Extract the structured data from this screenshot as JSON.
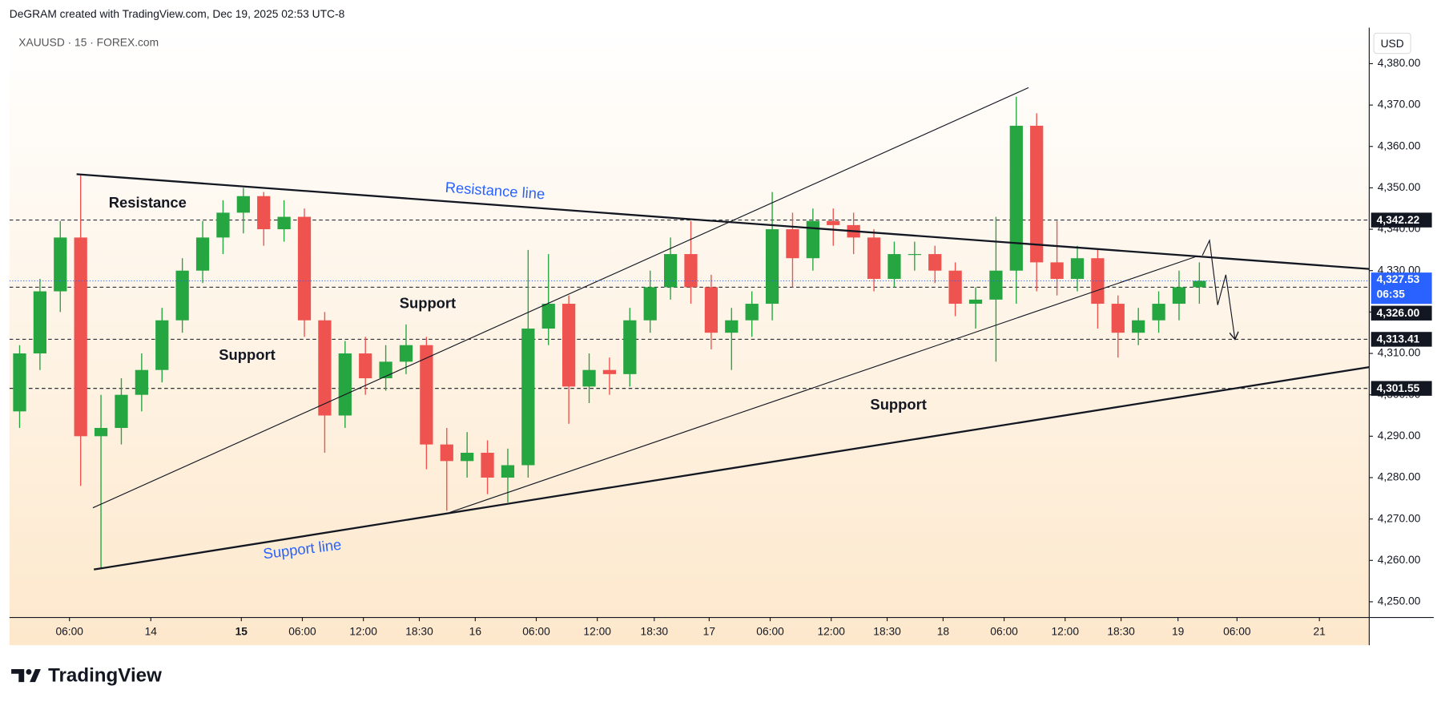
{
  "header": "DeGRAM created with TradingView.com, Dec 19, 2025 02:53 UTC-8",
  "brand": "TradingView",
  "chart_data": {
    "type": "candlestick",
    "symbol": "XAUUSD · 15 · FOREX.com",
    "currency": "USD",
    "up_color": "#26a641",
    "down_color": "#ef5350",
    "xlim": [
      0,
      133.7
    ],
    "xticks": [
      {
        "value": 5.9,
        "label": "06:00"
      },
      {
        "value": 13.9,
        "label": "14"
      },
      {
        "value": 22.8,
        "label": "15",
        "bold": true
      },
      {
        "value": 28.8,
        "label": "06:00"
      },
      {
        "value": 34.8,
        "label": "12:00"
      },
      {
        "value": 40.3,
        "label": "18:30"
      },
      {
        "value": 45.8,
        "label": "16"
      },
      {
        "value": 51.8,
        "label": "06:00"
      },
      {
        "value": 57.8,
        "label": "12:00"
      },
      {
        "value": 63.4,
        "label": "18:30"
      },
      {
        "value": 68.8,
        "label": "17"
      },
      {
        "value": 74.8,
        "label": "06:00"
      },
      {
        "value": 80.8,
        "label": "12:00"
      },
      {
        "value": 86.3,
        "label": "18:30"
      },
      {
        "value": 91.8,
        "label": "18"
      },
      {
        "value": 97.8,
        "label": "06:00"
      },
      {
        "value": 103.8,
        "label": "12:00"
      },
      {
        "value": 109.3,
        "label": "18:30"
      },
      {
        "value": 114.9,
        "label": "19"
      },
      {
        "value": 120.7,
        "label": "06:00"
      },
      {
        "value": 128.8,
        "label": "21"
      }
    ],
    "ylim": [
      4246.2,
      4388.7
    ],
    "yticks": [
      {
        "value": 4250,
        "label": "4,250.00"
      },
      {
        "value": 4260,
        "label": "4,260.00"
      },
      {
        "value": 4270,
        "label": "4,270.00"
      },
      {
        "value": 4280,
        "label": "4,280.00"
      },
      {
        "value": 4290,
        "label": "4,290.00"
      },
      {
        "value": 4300,
        "label": "4,300.00"
      },
      {
        "value": 4310,
        "label": "4,310.00"
      },
      {
        "value": 4320,
        "label": "4,320.00"
      },
      {
        "value": 4330,
        "label": "4,330.00"
      },
      {
        "value": 4340,
        "label": "4,340.00"
      },
      {
        "value": 4350,
        "label": "4,350.00"
      },
      {
        "value": 4360,
        "label": "4,360.00"
      },
      {
        "value": 4370,
        "label": "4,370.00"
      },
      {
        "value": 4380,
        "label": "4,380.00"
      }
    ],
    "x": [
      0,
      2,
      4,
      6,
      8,
      10,
      12,
      14,
      16,
      18,
      20,
      22,
      24,
      26,
      28,
      30,
      32,
      34,
      36,
      38,
      40,
      42,
      44,
      46,
      48,
      50,
      52,
      54,
      56,
      58,
      60,
      62,
      64,
      66,
      68,
      70,
      72,
      74,
      76,
      78,
      80,
      82,
      84,
      86,
      88,
      90,
      92,
      94,
      96,
      98,
      100,
      102,
      104,
      106,
      108,
      110,
      112,
      114,
      116
    ],
    "ohlc": [
      [
        4296,
        4312,
        4292,
        4310
      ],
      [
        4310,
        4328,
        4306,
        4325
      ],
      [
        4325,
        4342,
        4320,
        4338
      ],
      [
        4338,
        4353,
        4278,
        4290
      ],
      [
        4290,
        4300,
        4258,
        4292
      ],
      [
        4292,
        4304,
        4288,
        4300
      ],
      [
        4300,
        4310,
        4296,
        4306
      ],
      [
        4306,
        4321,
        4303,
        4318
      ],
      [
        4318,
        4333,
        4315,
        4330
      ],
      [
        4330,
        4342,
        4327,
        4338
      ],
      [
        4338,
        4347,
        4334,
        4344
      ],
      [
        4344,
        4350,
        4339,
        4348
      ],
      [
        4348,
        4349,
        4336,
        4340
      ],
      [
        4340,
        4347,
        4337,
        4343
      ],
      [
        4343,
        4345,
        4314,
        4318
      ],
      [
        4318,
        4320,
        4286,
        4295
      ],
      [
        4295,
        4313,
        4292,
        4310
      ],
      [
        4310,
        4314,
        4300,
        4304
      ],
      [
        4304,
        4312,
        4301,
        4308
      ],
      [
        4308,
        4317,
        4305,
        4312
      ],
      [
        4312,
        4314,
        4282,
        4288
      ],
      [
        4288,
        4292,
        4272,
        4284
      ],
      [
        4284,
        4291,
        4280,
        4286
      ],
      [
        4286,
        4289,
        4276,
        4280
      ],
      [
        4280,
        4287,
        4274,
        4283
      ],
      [
        4283,
        4335,
        4280,
        4316
      ],
      [
        4316,
        4334,
        4312,
        4322
      ],
      [
        4322,
        4324,
        4293,
        4302
      ],
      [
        4302,
        4310,
        4298,
        4306
      ],
      [
        4306,
        4309,
        4300,
        4305
      ],
      [
        4305,
        4321,
        4302,
        4318
      ],
      [
        4318,
        4330,
        4315,
        4326
      ],
      [
        4326,
        4338,
        4323,
        4334
      ],
      [
        4334,
        4342,
        4322,
        4326
      ],
      [
        4326,
        4329,
        4311,
        4315
      ],
      [
        4315,
        4321,
        4306,
        4318
      ],
      [
        4318,
        4325,
        4314,
        4322
      ],
      [
        4322,
        4349,
        4318,
        4340
      ],
      [
        4340,
        4344,
        4326,
        4333
      ],
      [
        4333,
        4345,
        4330,
        4342
      ],
      [
        4342,
        4345,
        4336,
        4341
      ],
      [
        4341,
        4344,
        4334,
        4338
      ],
      [
        4338,
        4340,
        4325,
        4328
      ],
      [
        4328,
        4337,
        4326,
        4334
      ],
      [
        4334,
        4337,
        4330,
        4334
      ],
      [
        4334,
        4336,
        4327,
        4330
      ],
      [
        4330,
        4332,
        4319,
        4322
      ],
      [
        4322,
        4326,
        4316,
        4323
      ],
      [
        4323,
        4343,
        4308,
        4330
      ],
      [
        4330,
        4372,
        4322,
        4365
      ],
      [
        4365,
        4368,
        4325,
        4332
      ],
      [
        4332,
        4342,
        4324,
        4328
      ],
      [
        4328,
        4336,
        4325,
        4333
      ],
      [
        4333,
        4335,
        4316,
        4322
      ],
      [
        4322,
        4324,
        4309,
        4315
      ],
      [
        4315,
        4321,
        4312,
        4318
      ],
      [
        4318,
        4325,
        4315,
        4322
      ],
      [
        4322,
        4330,
        4318,
        4326
      ],
      [
        4326,
        4332,
        4322,
        4327.53
      ]
    ],
    "levels": [
      4342.22,
      4326.0,
      4313.41,
      4301.55
    ],
    "level_labels": [
      "4,342.22",
      "4,326.00",
      "4,313.41",
      "4,301.55"
    ],
    "last_price": 4327.53,
    "last_price_label": "4,327.53",
    "countdown": "06:35",
    "last_price_color": "#2962ff",
    "trendlines": [
      {
        "x": [
          6.6,
          133.7
        ],
        "y": [
          4353.3,
          4330.4
        ],
        "width": 2
      },
      {
        "x": [
          8.3,
          133.7
        ],
        "y": [
          4257.8,
          4306.7
        ],
        "width": 2
      },
      {
        "x": [
          8.2,
          100.2
        ],
        "y": [
          4272.7,
          4374.2
        ],
        "width": 1
      },
      {
        "x": [
          43.3,
          116.8
        ],
        "y": [
          4271.6,
          4333.5
        ],
        "width": 1
      }
    ],
    "projection": {
      "x": [
        117.3,
        118.0,
        118.8,
        119.6,
        120.5
      ],
      "y": [
        4333.7,
        4337.3,
        4321.7,
        4329.0,
        4313.4
      ]
    },
    "annotations": [
      {
        "text": "Resistance",
        "color": "#131722"
      },
      {
        "text": "Resistance line",
        "color": "#2962ff"
      },
      {
        "text": "Support",
        "color": "#131722"
      },
      {
        "text": "Support",
        "color": "#131722"
      },
      {
        "text": "Support",
        "color": "#131722"
      },
      {
        "text": "Support line",
        "color": "#2962ff"
      }
    ]
  }
}
